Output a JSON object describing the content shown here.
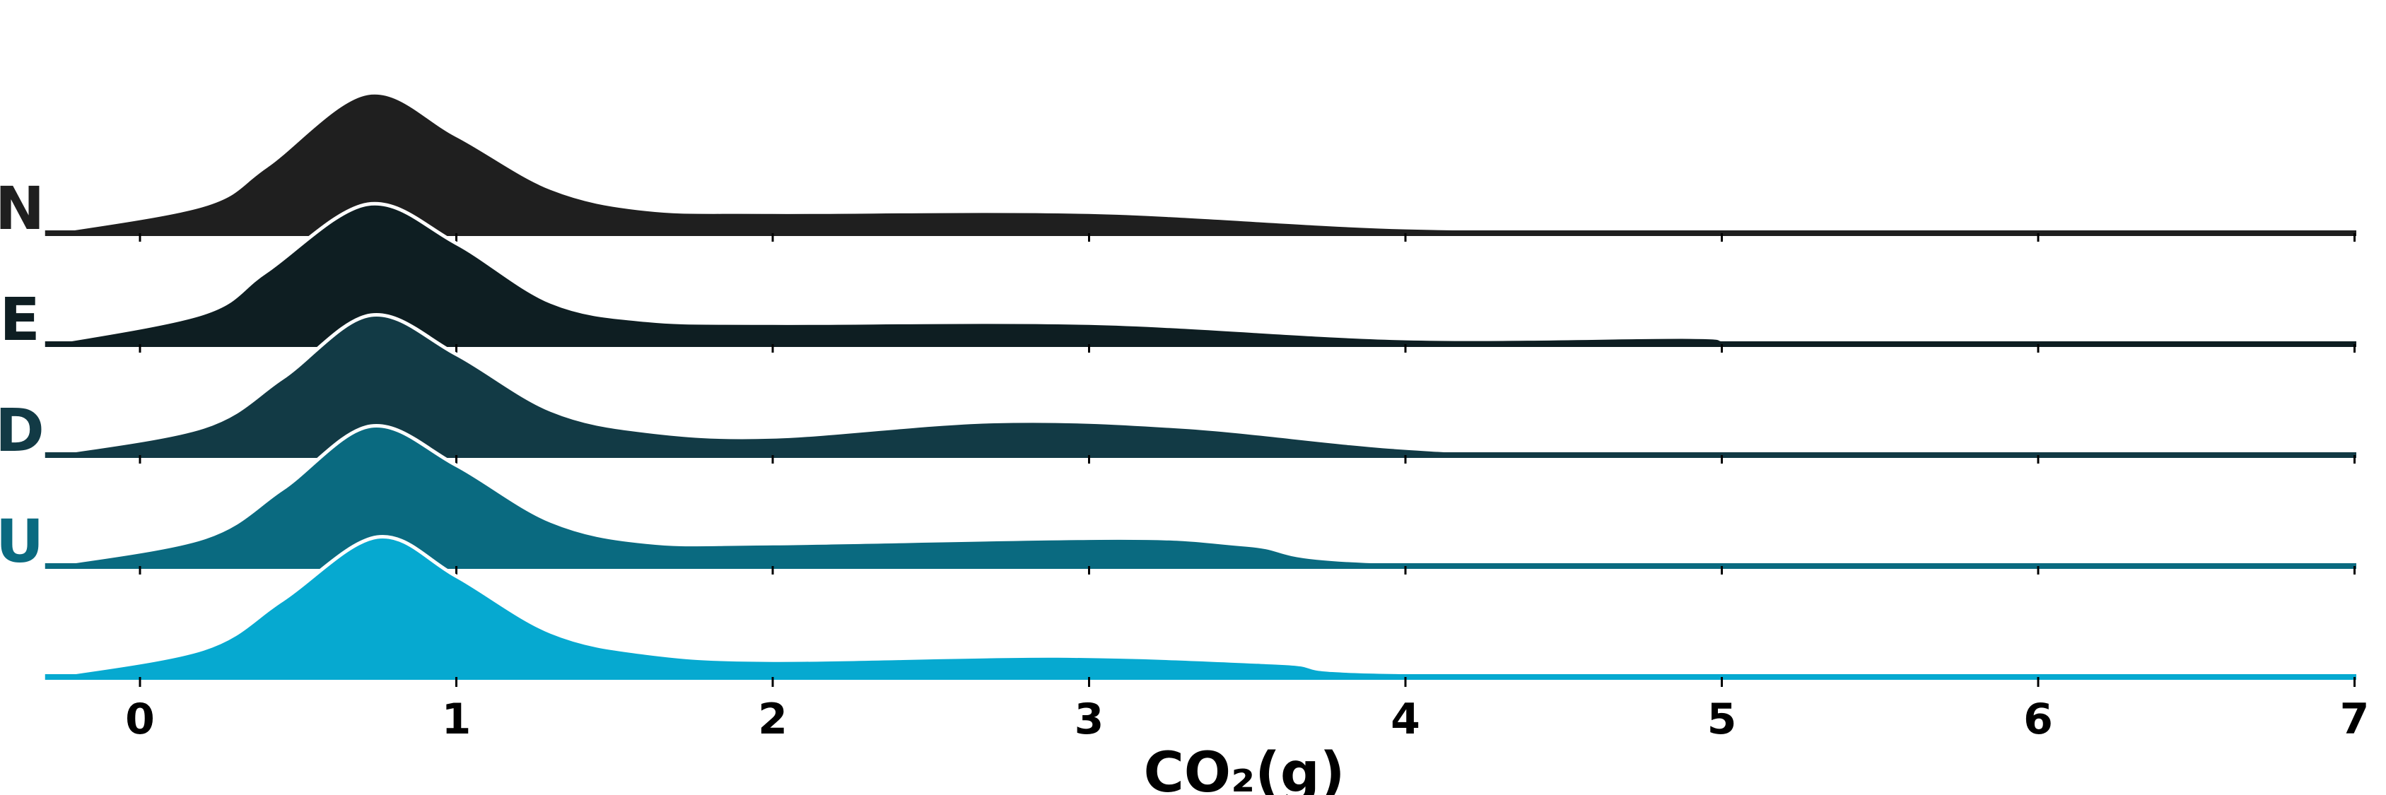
{
  "chart_data": {
    "type": "ridgeline",
    "title": "",
    "xlabel": "CO₂(g)",
    "ylabel": "",
    "xlim": [
      -0.3,
      7.0
    ],
    "x_ticks": [
      "0",
      "1",
      "2",
      "3",
      "4",
      "5",
      "6",
      "7"
    ],
    "x_tick_values": [
      0,
      1,
      2,
      3,
      4,
      5,
      6,
      7
    ],
    "grid": false,
    "legend": "none",
    "series": [
      {
        "label": "N",
        "color": "#1f1f1f",
        "x": [
          -0.3,
          0.2,
          0.4,
          0.72,
          1.0,
          1.3,
          1.6,
          2.0,
          3.0,
          4.0,
          5.0,
          7.0
        ],
        "y": [
          0.0,
          0.2,
          0.48,
          1.0,
          0.7,
          0.32,
          0.17,
          0.15,
          0.15,
          0.04,
          0.03,
          0.03
        ]
      },
      {
        "label": "E",
        "color": "#0e1e22",
        "x": [
          -0.3,
          0.2,
          0.4,
          0.72,
          1.0,
          1.3,
          1.6,
          2.0,
          3.0,
          4.0,
          4.9,
          5.2,
          7.0
        ],
        "y": [
          0.0,
          0.22,
          0.52,
          1.0,
          0.72,
          0.3,
          0.17,
          0.15,
          0.15,
          0.04,
          0.05,
          0.02,
          0.02
        ]
      },
      {
        "label": "D",
        "color": "#123a45",
        "x": [
          -0.3,
          0.2,
          0.45,
          0.73,
          1.0,
          1.3,
          1.6,
          2.0,
          2.7,
          3.3,
          4.0,
          4.6,
          7.0
        ],
        "y": [
          0.0,
          0.2,
          0.55,
          1.0,
          0.72,
          0.32,
          0.17,
          0.13,
          0.24,
          0.2,
          0.05,
          0.02,
          0.02
        ]
      },
      {
        "label": "U",
        "color": "#0a6a80",
        "x": [
          -0.3,
          0.2,
          0.45,
          0.73,
          1.0,
          1.3,
          1.6,
          2.0,
          3.1,
          3.5,
          4.1,
          7.0
        ],
        "y": [
          0.0,
          0.2,
          0.55,
          1.0,
          0.72,
          0.32,
          0.17,
          0.16,
          0.2,
          0.15,
          0.02,
          0.02
        ]
      },
      {
        "label": "",
        "color": "#06a9d0",
        "x": [
          -0.3,
          0.2,
          0.45,
          0.75,
          1.0,
          1.3,
          1.6,
          2.0,
          2.9,
          3.6,
          4.1,
          7.0
        ],
        "y": [
          0.0,
          0.2,
          0.55,
          1.0,
          0.72,
          0.32,
          0.17,
          0.12,
          0.15,
          0.1,
          0.03,
          0.03
        ]
      }
    ]
  }
}
